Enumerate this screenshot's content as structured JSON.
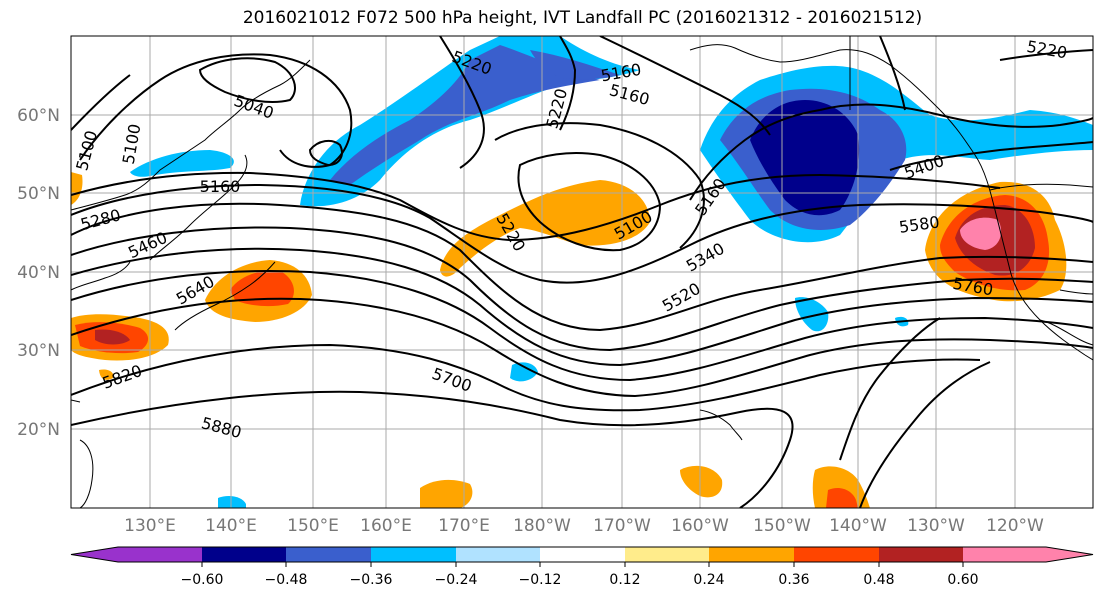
{
  "title": "2016021012 F072 500 hPa height, IVT Landfall PC (2016021312 - 2016021512)",
  "lat_labels": [
    "60°N",
    "50°N",
    "40°N",
    "30°N",
    "20°N"
  ],
  "lon_labels": [
    "130°E",
    "140°E",
    "150°E",
    "160°E",
    "170°E",
    "180°W",
    "170°W",
    "160°W",
    "150°W",
    "140°W",
    "130°W",
    "120°W"
  ],
  "contour_labels": [
    "5220",
    "5100",
    "5160",
    "5040",
    "5220",
    "5160",
    "5100",
    "5160",
    "5280",
    "5460",
    "5640",
    "5820",
    "5220",
    "5100",
    "5160",
    "5340",
    "5520",
    "5700",
    "5880",
    "5400",
    "5580",
    "5760",
    "5220"
  ],
  "colorbar": {
    "labels": [
      "−0.60",
      "−0.48",
      "−0.36",
      "−0.24",
      "−0.12",
      "0.12",
      "0.24",
      "0.36",
      "0.48",
      "0.60"
    ],
    "colors": [
      "#9932cc",
      "#00008b",
      "#3a5fcd",
      "#00bfff",
      "#b0e2ff",
      "#ffffff",
      "#ffec8b",
      "#ffa500",
      "#ff4500",
      "#b22222",
      "#ff82ab"
    ]
  }
}
